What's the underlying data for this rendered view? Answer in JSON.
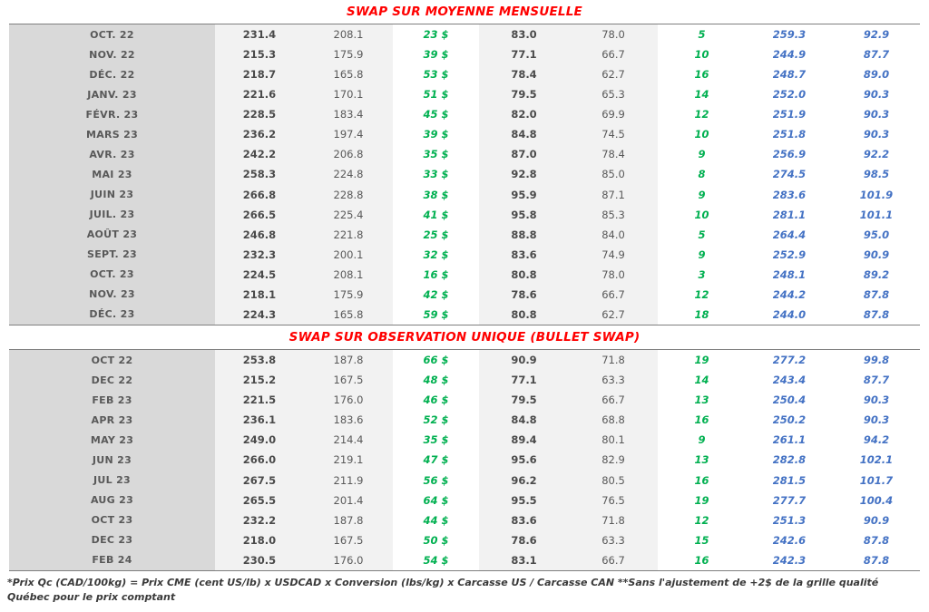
{
  "table1": {
    "title": "SWAP SUR MOYENNE MENSUELLE",
    "rows": [
      [
        "OCT. 22",
        "231.4",
        "208.1",
        "23 $",
        "83.0",
        "78.0",
        "5",
        "259.3",
        "92.9"
      ],
      [
        "NOV. 22",
        "215.3",
        "175.9",
        "39 $",
        "77.1",
        "66.7",
        "10",
        "244.9",
        "87.7"
      ],
      [
        "DÉC. 22",
        "218.7",
        "165.8",
        "53 $",
        "78.4",
        "62.7",
        "16",
        "248.7",
        "89.0"
      ],
      [
        "JANV. 23",
        "221.6",
        "170.1",
        "51 $",
        "79.5",
        "65.3",
        "14",
        "252.0",
        "90.3"
      ],
      [
        "FÉVR. 23",
        "228.5",
        "183.4",
        "45 $",
        "82.0",
        "69.9",
        "12",
        "251.9",
        "90.3"
      ],
      [
        "MARS 23",
        "236.2",
        "197.4",
        "39 $",
        "84.8",
        "74.5",
        "10",
        "251.8",
        "90.3"
      ],
      [
        "AVR. 23",
        "242.2",
        "206.8",
        "35 $",
        "87.0",
        "78.4",
        "9",
        "256.9",
        "92.2"
      ],
      [
        "MAI 23",
        "258.3",
        "224.8",
        "33 $",
        "92.8",
        "85.0",
        "8",
        "274.5",
        "98.5"
      ],
      [
        "JUIN 23",
        "266.8",
        "228.8",
        "38 $",
        "95.9",
        "87.1",
        "9",
        "283.6",
        "101.9"
      ],
      [
        "JUIL. 23",
        "266.5",
        "225.4",
        "41 $",
        "95.8",
        "85.3",
        "10",
        "281.1",
        "101.1"
      ],
      [
        "AOÛT 23",
        "246.8",
        "221.8",
        "25 $",
        "88.8",
        "84.0",
        "5",
        "264.4",
        "95.0"
      ],
      [
        "SEPT. 23",
        "232.3",
        "200.1",
        "32 $",
        "83.6",
        "74.9",
        "9",
        "252.9",
        "90.9"
      ],
      [
        "OCT. 23",
        "224.5",
        "208.1",
        "16 $",
        "80.8",
        "78.0",
        "3",
        "248.1",
        "89.2"
      ],
      [
        "NOV. 23",
        "218.1",
        "175.9",
        "42 $",
        "78.6",
        "66.7",
        "12",
        "244.2",
        "87.8"
      ],
      [
        "DÉC. 23",
        "224.3",
        "165.8",
        "59 $",
        "80.8",
        "62.7",
        "18",
        "244.0",
        "87.8"
      ]
    ]
  },
  "table2": {
    "title": "SWAP SUR OBSERVATION UNIQUE (BULLET SWAP)",
    "rows": [
      [
        "OCT 22",
        "253.8",
        "187.8",
        "66 $",
        "90.9",
        "71.8",
        "19",
        "277.2",
        "99.8"
      ],
      [
        "DEC 22",
        "215.2",
        "167.5",
        "48 $",
        "77.1",
        "63.3",
        "14",
        "243.4",
        "87.7"
      ],
      [
        "FEB 23",
        "221.5",
        "176.0",
        "46 $",
        "79.5",
        "66.7",
        "13",
        "250.4",
        "90.3"
      ],
      [
        "APR 23",
        "236.1",
        "183.6",
        "52 $",
        "84.8",
        "68.8",
        "16",
        "250.2",
        "90.3"
      ],
      [
        "MAY 23",
        "249.0",
        "214.4",
        "35 $",
        "89.4",
        "80.1",
        "9",
        "261.1",
        "94.2"
      ],
      [
        "JUN 23",
        "266.0",
        "219.1",
        "47 $",
        "95.6",
        "82.9",
        "13",
        "282.8",
        "102.1"
      ],
      [
        "JUL 23",
        "267.5",
        "211.9",
        "56 $",
        "96.2",
        "80.5",
        "16",
        "281.5",
        "101.7"
      ],
      [
        "AUG 23",
        "265.5",
        "201.4",
        "64 $",
        "95.5",
        "76.5",
        "19",
        "277.7",
        "100.4"
      ],
      [
        "OCT 23",
        "232.2",
        "187.8",
        "44 $",
        "83.6",
        "71.8",
        "12",
        "251.3",
        "90.9"
      ],
      [
        "DEC 23",
        "218.0",
        "167.5",
        "50 $",
        "78.6",
        "63.3",
        "15",
        "242.6",
        "87.8"
      ],
      [
        "FEB 24",
        "230.5",
        "176.0",
        "54 $",
        "83.1",
        "66.7",
        "16",
        "242.3",
        "87.8"
      ]
    ]
  },
  "footnote": {
    "text": "*Prix Qc (CAD/100kg) = Prix CME (cent US/lb) x USDCAD x Conversion (lbs/kg) x Carcasse US / Carcasse CAN **Sans l'ajustement de +2$ de la grille qualité Québec pour le prix comptant"
  },
  "colors": {
    "title_red": "#FF0000",
    "swap_green": "#00B050",
    "projection_blue": "#4472C4",
    "month_column_gray": "#D9D9D9",
    "value_block_gray": "#F2F2F2",
    "text_gray": "#595959",
    "border_gray": "#7F7F7F"
  }
}
